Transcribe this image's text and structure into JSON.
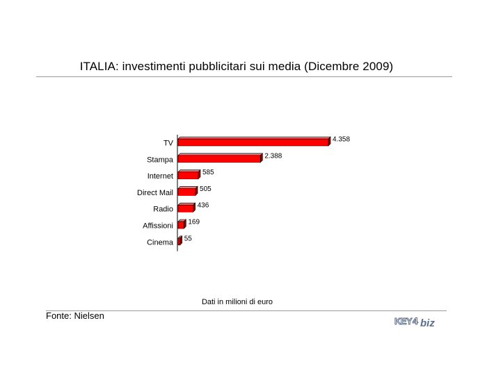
{
  "chart_data": {
    "type": "bar",
    "orientation": "horizontal",
    "title": "ITALIA: investimenti pubblicitari sui media (Dicembre 2009)",
    "categories": [
      "TV",
      "Stampa",
      "Internet",
      "Direct Mail",
      "Radio",
      "Affissioni",
      "Cinema"
    ],
    "values": [
      4358,
      2388,
      585,
      505,
      436,
      169,
      55
    ],
    "value_labels": [
      "4.358",
      "2.388",
      "585",
      "505",
      "436",
      "169",
      "55"
    ],
    "bar_color": "#ff0000",
    "note": "Dati in milioni di euro",
    "grid": false,
    "legend": "none"
  },
  "footer": {
    "source": "Fonte: Nielsen",
    "logo_text": "KEY4biz"
  }
}
